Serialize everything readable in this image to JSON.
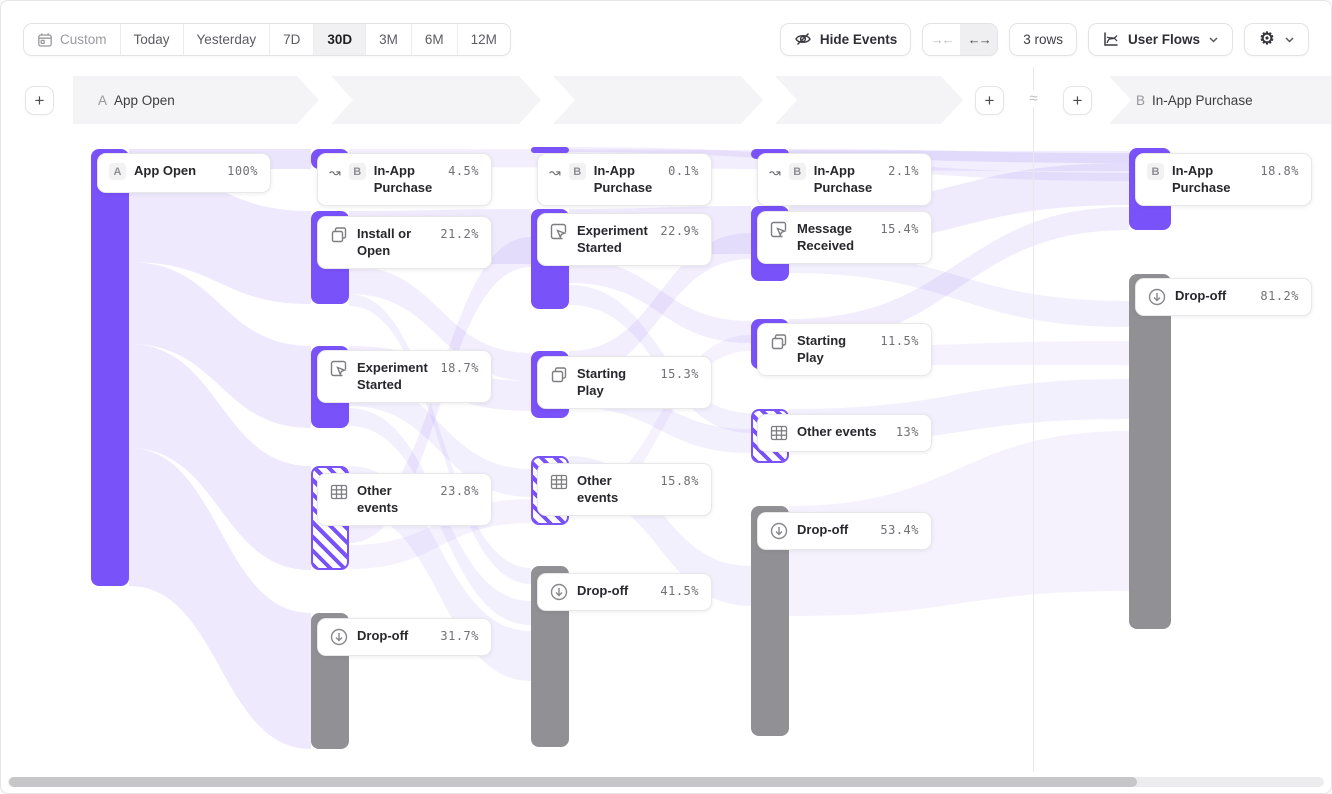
{
  "toolbar": {
    "date_ranges": [
      {
        "label": "Custom",
        "icon": "calendar",
        "muted": true,
        "selected": false
      },
      {
        "label": "Today",
        "selected": false
      },
      {
        "label": "Yesterday",
        "selected": false
      },
      {
        "label": "7D",
        "selected": false
      },
      {
        "label": "30D",
        "selected": true
      },
      {
        "label": "3M",
        "selected": false
      },
      {
        "label": "6M",
        "selected": false
      },
      {
        "label": "12M",
        "selected": false
      }
    ],
    "hide_events_label": "Hide Events",
    "rows_label": "3 rows",
    "view_label": "User Flows",
    "collapse_icon": "→←",
    "expand_icon": "←→"
  },
  "header": {
    "start_badge": "A",
    "start_label": "App Open",
    "end_badge": "B",
    "end_label": "In-App Purchase",
    "approx_symbol": "≈"
  },
  "chart_data": {
    "type": "sankey",
    "title": "User Flows: App Open to In-App Purchase",
    "start_event": "App Open",
    "end_event": "In-App Purchase",
    "rows_shown": 3,
    "date_range": "30D",
    "columns": [
      {
        "name": "step-0",
        "nodes": [
          {
            "label": "App Open",
            "badge": "A",
            "percent": "100%",
            "variant": "purple"
          }
        ]
      },
      {
        "name": "step-1",
        "nodes": [
          {
            "label": "In-App Purchase",
            "badge": "B",
            "icon": "flow-arrow",
            "percent": "4.5%",
            "variant": "purple"
          },
          {
            "label": "Install or Open",
            "icon": "copy",
            "percent": "21.2%",
            "variant": "purple"
          },
          {
            "label": "Experiment Started",
            "icon": "click",
            "percent": "18.7%",
            "variant": "purple"
          },
          {
            "label": "Other events",
            "icon": "grid",
            "percent": "23.8%",
            "variant": "hatched"
          },
          {
            "label": "Drop-off",
            "icon": "drop",
            "percent": "31.7%",
            "variant": "gray"
          }
        ]
      },
      {
        "name": "step-2",
        "nodes": [
          {
            "label": "In-App Purchase",
            "badge": "B",
            "icon": "flow-arrow",
            "percent": "0.1%",
            "variant": "purple"
          },
          {
            "label": "Experiment Started",
            "icon": "click",
            "percent": "22.9%",
            "variant": "purple"
          },
          {
            "label": "Starting Play",
            "icon": "copy",
            "percent": "15.3%",
            "variant": "purple"
          },
          {
            "label": "Other events",
            "icon": "grid",
            "percent": "15.8%",
            "variant": "hatched"
          },
          {
            "label": "Drop-off",
            "icon": "drop",
            "percent": "41.5%",
            "variant": "gray"
          }
        ]
      },
      {
        "name": "step-3",
        "nodes": [
          {
            "label": "In-App Purchase",
            "badge": "B",
            "icon": "flow-arrow",
            "percent": "2.1%",
            "variant": "purple"
          },
          {
            "label": "Message Received",
            "icon": "click",
            "percent": "15.4%",
            "variant": "purple"
          },
          {
            "label": "Starting Play",
            "icon": "copy",
            "percent": "11.5%",
            "variant": "purple"
          },
          {
            "label": "Other events",
            "icon": "grid",
            "percent": "13%",
            "variant": "hatched"
          },
          {
            "label": "Drop-off",
            "icon": "drop",
            "percent": "53.4%",
            "variant": "gray"
          }
        ]
      },
      {
        "name": "end",
        "nodes": [
          {
            "label": "In-App Purchase",
            "badge": "B",
            "percent": "18.8%",
            "variant": "purple"
          },
          {
            "label": "Drop-off",
            "icon": "drop",
            "percent": "81.2%",
            "variant": "gray"
          }
        ]
      }
    ],
    "colors": {
      "node_purple": "#7A52FA",
      "node_gray": "#919195",
      "ribbon": "#7B57F0",
      "card_border": "#E8E8EA"
    }
  }
}
